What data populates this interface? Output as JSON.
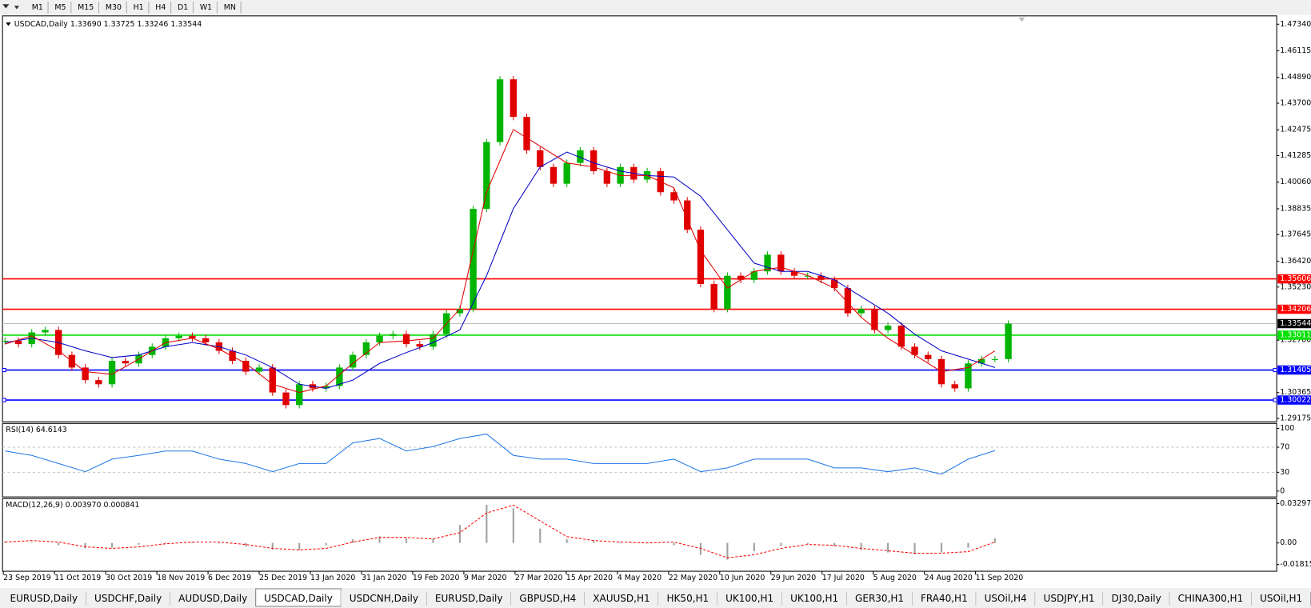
{
  "toolbar": {
    "timeframes": [
      "M1",
      "M5",
      "M15",
      "M30",
      "H1",
      "H4",
      "D1",
      "W1",
      "MN"
    ]
  },
  "chart": {
    "type": "candlestick",
    "title": "USDCAD,Daily  1.33690 1.33725 1.33246 1.33544",
    "up_color": "#00b400",
    "down_color": "#e00000",
    "closes": [
      1.3275,
      1.326,
      1.3314,
      1.3325,
      1.321,
      1.3152,
      1.3094,
      1.3075,
      1.3183,
      1.3171,
      1.321,
      1.3248,
      1.3287,
      1.3298,
      1.3287,
      1.3268,
      1.3229,
      1.3183,
      1.3133,
      1.3152,
      1.3037,
      1.2979,
      1.3075,
      1.3056,
      1.3067,
      1.3152,
      1.321,
      1.3268,
      1.3298,
      1.3306,
      1.326,
      1.3248,
      1.3306,
      1.3402,
      1.3422,
      1.3883,
      1.4191,
      1.448,
      1.4307,
      1.4153,
      1.4076,
      1.3999,
      1.4095,
      1.4153,
      1.4057,
      1.3999,
      1.4076,
      1.4018,
      1.4057,
      1.396,
      1.3922,
      1.3787,
      1.3537,
      1.3422,
      1.3575,
      1.3556,
      1.3595,
      1.3672,
      1.3595,
      1.3575,
      1.3575,
      1.3556,
      1.3518,
      1.3402,
      1.3422,
      1.3325,
      1.3345,
      1.3248,
      1.321,
      1.3191,
      1.3075,
      1.3056,
      1.3171,
      1.3191,
      1.3191,
      1.3354
    ],
    "ma_fast": {
      "color": "#e00000",
      "values": [
        1.326,
        1.3298,
        1.3229,
        1.3133,
        1.3121,
        1.3191,
        1.3267,
        1.3287,
        1.3237,
        1.3171,
        1.3075,
        1.3037,
        1.3067,
        1.3171,
        1.3267,
        1.3275,
        1.3287,
        1.3422,
        1.3961,
        1.4249,
        1.4172,
        1.4095,
        1.4076,
        1.4037,
        1.4037,
        1.398,
        1.3691,
        1.3518,
        1.3595,
        1.3614,
        1.3576,
        1.3518,
        1.3383,
        1.3287,
        1.321,
        1.3133,
        1.3152,
        1.3229
      ]
    },
    "ma_slow": {
      "color": "#0000c8",
      "values": [
        1.3267,
        1.3287,
        1.3267,
        1.3229,
        1.3198,
        1.321,
        1.3248,
        1.3267,
        1.3248,
        1.321,
        1.3152,
        1.3075,
        1.3056,
        1.3094,
        1.3171,
        1.3221,
        1.3267,
        1.3325,
        1.3576,
        1.3884,
        1.4076,
        1.4145,
        1.4095,
        1.4057,
        1.4037,
        1.403,
        1.3941,
        1.3787,
        1.3633,
        1.3595,
        1.3595,
        1.3556,
        1.3479,
        1.3402,
        1.3306,
        1.3229,
        1.3191,
        1.3152
      ]
    },
    "ylim": [
      1.29175,
      1.4734
    ],
    "yticks": [
      {
        "value": 1.4734,
        "label": "1.47340"
      },
      1.46115,
      {
        "value": 1.4489,
        "label": "1.44890"
      },
      {
        "value": 1.437,
        "label": "1.43700"
      },
      1.42475,
      1.41285,
      {
        "value": 1.4006,
        "label": "1.40060"
      },
      1.38835,
      1.37645,
      {
        "value": 1.3642,
        "label": "1.36420"
      },
      {
        "value": 1.3523,
        "label": "1.35230"
      },
      {
        "value": 1.3278,
        "label": "1.32780"
      },
      1.30365,
      1.29175
    ],
    "levels": [
      {
        "value": 1.35606,
        "color": "#ff0000"
      },
      {
        "value": 1.34206,
        "color": "#ff0000"
      },
      {
        "value": 1.33544,
        "color": "#000000"
      },
      {
        "value": 1.33011,
        "color": "#00e000"
      },
      {
        "value": 1.31405,
        "color": "#0000ff"
      },
      {
        "value": 1.30022,
        "color": "#0000ff"
      }
    ],
    "dates": [
      "23 Sep 2019",
      "11 Oct 2019",
      "30 Oct 2019",
      "18 Nov 2019",
      "6 Dec 2019",
      "25 Dec 2019",
      "13 Jan 2020",
      "31 Jan 2020",
      "19 Feb 2020",
      "9 Mar 2020",
      "27 Mar 2020",
      "15 Apr 2020",
      "4 May 2020",
      "22 May 2020",
      "10 Jun 2020",
      "29 Jun 2020",
      "17 Jul 2020",
      "5 Aug 2020",
      "24 Aug 2020",
      "11 Sep 2020"
    ]
  },
  "rsi": {
    "title": "RSI(14) 64.6143",
    "color": "#1e78e6",
    "ylim": [
      0,
      100
    ],
    "yticks": [
      100,
      70,
      30,
      0
    ],
    "levels": [
      70,
      30
    ],
    "values": [
      64,
      57,
      44,
      31,
      51,
      57,
      64,
      64,
      51,
      44,
      31,
      44,
      44,
      77,
      84,
      64,
      71,
      84,
      91,
      57,
      51,
      51,
      44,
      44,
      44,
      51,
      31,
      37,
      51,
      51,
      51,
      37,
      37,
      31,
      37,
      27,
      51,
      64.6
    ]
  },
  "macd": {
    "title": "MACD(12,26,9) 0.003970 0.000841",
    "ylim": [
      -0.018154,
      0.032972
    ],
    "yticks": [
      0.032972,
      {
        "value": 0,
        "label": "0.00"
      },
      -0.018154
    ],
    "main": [
      0.001,
      0.0005,
      -0.002,
      -0.0045,
      -0.004,
      -0.0015,
      0.0005,
      0.001,
      -0.0005,
      -0.003,
      -0.0055,
      -0.006,
      -0.002,
      0.003,
      0.0055,
      0.004,
      0.0035,
      0.015,
      0.032,
      0.029,
      0.012,
      0.003,
      0.0015,
      0.001,
      0.0005,
      -0.002,
      -0.01,
      -0.014,
      -0.007,
      -0.0025,
      -0.001,
      -0.003,
      -0.006,
      -0.008,
      -0.0095,
      -0.008,
      -0.004,
      0.004
    ],
    "signal": [
      0.0007,
      0.002,
      0.0007,
      -0.0033,
      -0.0046,
      -0.0033,
      -0.0007,
      0.0007,
      0.0007,
      -0.0013,
      -0.0046,
      -0.0059,
      -0.0046,
      0.0007,
      0.0046,
      0.0046,
      0.0033,
      0.0086,
      0.0251,
      0.0317,
      0.0185,
      0.0053,
      0.002,
      0.0007,
      0,
      0.0007,
      -0.0046,
      -0.0125,
      -0.0099,
      -0.0046,
      -0.0013,
      -0.002,
      -0.0046,
      -0.0066,
      -0.0086,
      -0.0086,
      -0.0073,
      0.0008
    ]
  },
  "tabs": {
    "active": 3,
    "items": [
      "EURUSD,Daily",
      "USDCHF,Daily",
      "AUDUSD,Daily",
      "USDCAD,Daily",
      "USDCNH,Daily",
      "EURUSD,Daily",
      "GBPUSD,H4",
      "XAUUSD,H1",
      "HK50,H1",
      "UK100,H1",
      "UK100,H1",
      "GER30,H1",
      "FRA40,H1",
      "USOil,H4",
      "USDJPY,H1",
      "DJ30,Daily",
      "CHINA300,H1",
      "USOil,H1"
    ]
  }
}
